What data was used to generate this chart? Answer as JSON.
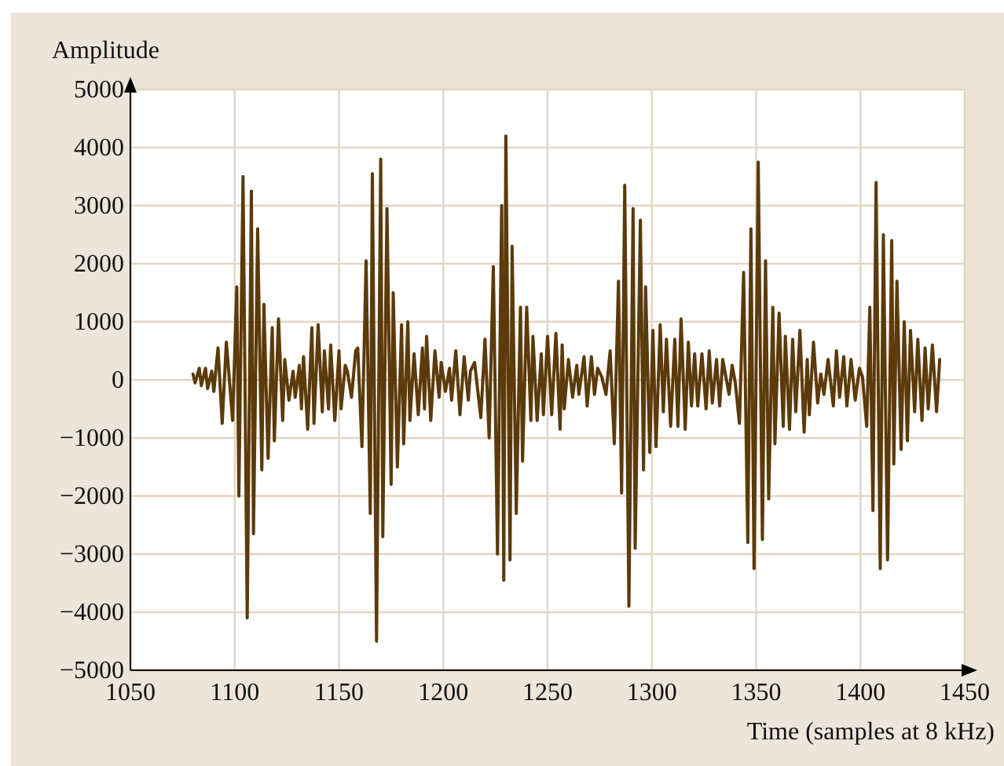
{
  "chart_data": {
    "type": "line",
    "xlabel": "Time (samples at 8 kHz)",
    "ylabel": "Amplitude",
    "xlim": [
      1050,
      1450
    ],
    "xticks": [
      1050,
      1100,
      1150,
      1200,
      1250,
      1300,
      1350,
      1400,
      1450
    ],
    "ylim": [
      -5000,
      5000
    ],
    "yticks": [
      -5000,
      -4000,
      -3000,
      -2000,
      -1000,
      0,
      1000,
      2000,
      3000,
      4000,
      5000
    ],
    "grid": true,
    "marker": "none",
    "line_style": "solid",
    "series": [
      {
        "color": "#5c3a0a",
        "x": [
          1080,
          1081,
          1083,
          1084,
          1086,
          1087,
          1089,
          1090,
          1092,
          1094,
          1096,
          1099,
          1101,
          1102,
          1104,
          1106,
          1108,
          1109,
          1111,
          1113,
          1114,
          1116,
          1118,
          1119,
          1121,
          1123,
          1124,
          1126,
          1128,
          1129,
          1131,
          1132,
          1133,
          1135,
          1137,
          1138,
          1140,
          1142,
          1143,
          1145,
          1146,
          1148,
          1150,
          1151,
          1153,
          1154,
          1156,
          1158,
          1159,
          1161,
          1163,
          1165,
          1166,
          1168,
          1170,
          1171,
          1173,
          1175,
          1176,
          1178,
          1180,
          1181,
          1183,
          1184,
          1186,
          1188,
          1190,
          1191,
          1192,
          1194,
          1196,
          1198,
          1199,
          1201,
          1203,
          1204,
          1206,
          1208,
          1210,
          1212,
          1213,
          1215,
          1218,
          1220,
          1222,
          1224,
          1226,
          1228,
          1229,
          1230,
          1232,
          1233,
          1235,
          1237,
          1238,
          1240,
          1242,
          1243,
          1245,
          1247,
          1248,
          1250,
          1252,
          1254,
          1256,
          1257,
          1258,
          1260,
          1262,
          1264,
          1265,
          1267.5,
          1269,
          1271,
          1272.5,
          1274,
          1276,
          1278,
          1280,
          1282,
          1284,
          1285.5,
          1287,
          1289,
          1291,
          1292,
          1294.5,
          1296,
          1297,
          1299,
          1300.5,
          1302,
          1304,
          1305.5,
          1307,
          1309,
          1311,
          1312.5,
          1314,
          1316,
          1317.5,
          1319,
          1320.5,
          1322,
          1324,
          1326,
          1327.5,
          1329,
          1331,
          1332.5,
          1334,
          1337,
          1338.5,
          1340,
          1342,
          1344,
          1346,
          1347.5,
          1349,
          1351,
          1353,
          1354.5,
          1356,
          1358,
          1359,
          1361,
          1363,
          1364,
          1366,
          1367.5,
          1369,
          1371,
          1373,
          1374.5,
          1375.5,
          1377.5,
          1379.5,
          1381,
          1382.5,
          1384.5,
          1387,
          1388.5,
          1390,
          1392,
          1393.5,
          1395.5,
          1397.5,
          1399.5,
          1401,
          1403,
          1404.5,
          1406,
          1407.5,
          1409.5,
          1411,
          1413,
          1415,
          1416,
          1417.5,
          1419.5,
          1421,
          1422.5,
          1424,
          1426,
          1427.5,
          1429.5,
          1431,
          1432.5,
          1434.5,
          1436.5,
          1438
        ],
        "values": [
          100,
          -50,
          200,
          -100,
          200,
          -150,
          150,
          -200,
          550,
          -750,
          650,
          -700,
          1600,
          -2000,
          3500,
          -4100,
          3250,
          -2650,
          2600,
          -1550,
          1300,
          -1350,
          900,
          -1050,
          1050,
          -700,
          350,
          -350,
          150,
          -300,
          250,
          -500,
          400,
          -850,
          900,
          -750,
          950,
          -550,
          500,
          -500,
          600,
          -700,
          500,
          -500,
          250,
          150,
          -300,
          500,
          550,
          -1150,
          2050,
          -2300,
          3550,
          -4500,
          3800,
          -2700,
          2950,
          -1800,
          1500,
          -1500,
          950,
          -1100,
          1000,
          -700,
          450,
          -600,
          550,
          -500,
          750,
          -700,
          500,
          -300,
          300,
          -200,
          200,
          -350,
          500,
          -600,
          400,
          -350,
          150,
          300,
          -650,
          700,
          -1000,
          1950,
          -3000,
          3000,
          -3450,
          4200,
          -3100,
          2300,
          -2300,
          1250,
          -1400,
          1250,
          -700,
          750,
          -700,
          450,
          -600,
          750,
          -600,
          800,
          -850,
          600,
          -500,
          350,
          -300,
          250,
          -250,
          400,
          -450,
          400,
          -250,
          200,
          50,
          -250,
          500,
          -1100,
          1700,
          -1950,
          3350,
          -3900,
          2950,
          -2900,
          2750,
          -1550,
          1600,
          -1250,
          850,
          -1150,
          950,
          -550,
          700,
          -800,
          700,
          -800,
          1050,
          -850,
          650,
          -450,
          450,
          -450,
          450,
          -500,
          500,
          -400,
          350,
          -450,
          350,
          -250,
          250,
          -50,
          -750,
          1850,
          -2800,
          2600,
          -3250,
          3750,
          -2750,
          2050,
          -2050,
          1250,
          -1100,
          1150,
          -800,
          750,
          -850,
          700,
          -550,
          850,
          -900,
          350,
          -600,
          650,
          -400,
          100,
          -250,
          350,
          -450,
          500,
          -300,
          400,
          -450,
          350,
          -350,
          200,
          50,
          -800,
          1250,
          -2250,
          3400,
          -3250,
          2500,
          -3100,
          2400,
          -1450,
          1700,
          -1200,
          1000,
          -1050,
          850,
          -550,
          700,
          -700,
          550,
          -500,
          600,
          -550,
          350
        ]
      }
    ]
  }
}
